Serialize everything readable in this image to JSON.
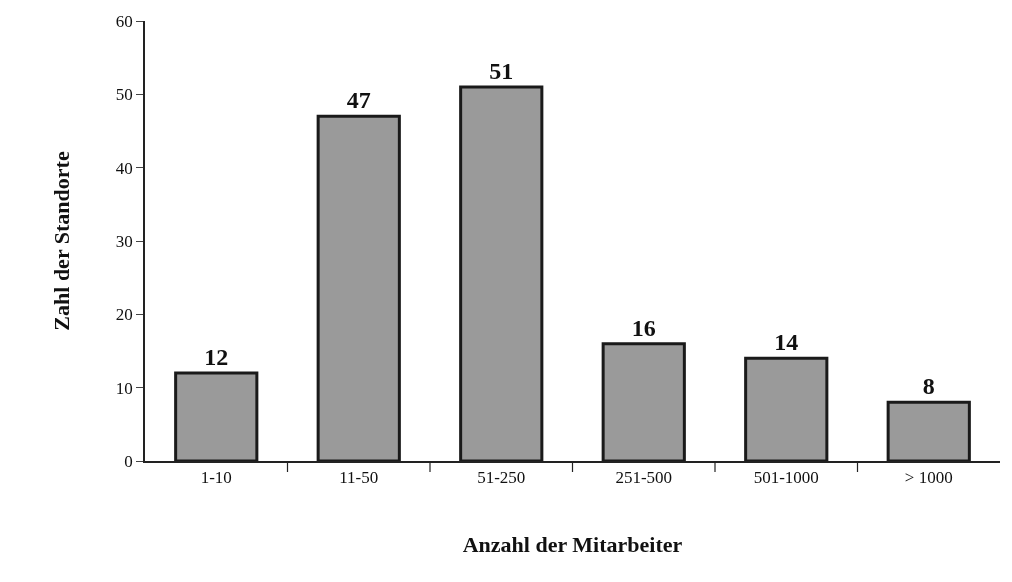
{
  "chart_data": {
    "type": "bar",
    "xlabel": "Anzahl der Mitarbeiter",
    "ylabel": "Zahl der Standorte",
    "categories": [
      "1-10",
      "11-50",
      "51-250",
      "251-500",
      "501-1000",
      "> 1000"
    ],
    "values": [
      12,
      47,
      51,
      16,
      14,
      8
    ],
    "color": "#9a9a9a",
    "ylim": [
      0,
      60
    ],
    "yticks": [
      0,
      10,
      20,
      30,
      40,
      50,
      60
    ],
    "data_labels": true
  }
}
